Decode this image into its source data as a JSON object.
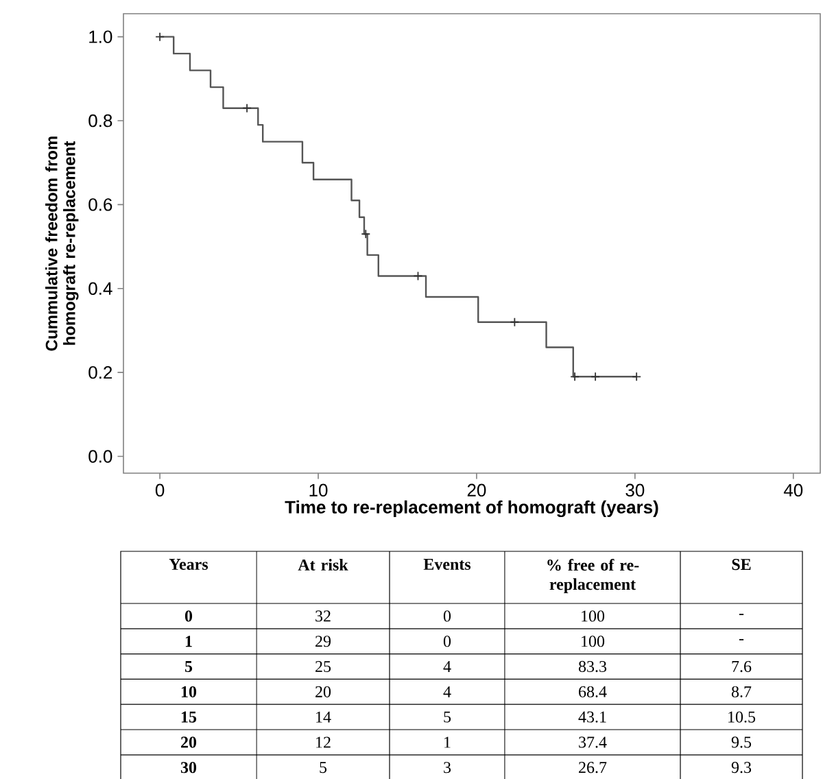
{
  "chart_data": {
    "type": "step",
    "xlabel": "Time to re-replacement of homograft (years)",
    "ylabel": "Cummulative freedom from homograft re-replacement",
    "xlim": [
      -2.3,
      41.7
    ],
    "ylim": [
      -0.04,
      1.055
    ],
    "xticks": [
      0,
      10,
      20,
      30,
      40
    ],
    "yticks": [
      {
        "value": 0,
        "label": "0.0"
      },
      {
        "value": 0.2,
        "label": "0.2"
      },
      {
        "value": 0.4,
        "label": "0.4"
      },
      {
        "value": 0.6,
        "label": "0.6"
      },
      {
        "value": 0.8,
        "label": "0.8"
      },
      {
        "value": 1,
        "label": "1.0"
      }
    ],
    "grid": false,
    "series": [
      {
        "color": "#555555",
        "x": [
          0,
          0.87,
          1.9,
          3.2,
          4.0,
          6.2,
          6.5,
          9.0,
          9.7,
          12.1,
          12.6,
          12.9,
          13.1,
          13.8,
          16.8,
          20.1,
          24.4,
          26.1,
          30.1
        ],
        "values": [
          1,
          0.96,
          0.92,
          0.88,
          0.83,
          0.79,
          0.75,
          0.7,
          0.66,
          0.61,
          0.57,
          0.53,
          0.48,
          0.43,
          0.38,
          0.32,
          0.26,
          0.19,
          0.19
        ]
      },
      {
        "type": "scatter",
        "marker": "cross",
        "color": "#333333",
        "x": [
          0,
          5.5,
          13.0,
          16.3,
          22.4,
          26.2,
          27.5,
          30.1
        ],
        "values": [
          1,
          0.83,
          0.53,
          0.43,
          0.32,
          0.19,
          0.19,
          0.19
        ]
      }
    ],
    "annotations": [
      "Years",
      "At risk",
      "Events",
      "% free of re-replacement",
      "SE",
      "0",
      "32",
      "0",
      "100",
      "-",
      "1",
      "29",
      "0",
      "100",
      "-",
      "5",
      "25",
      "4",
      "83.3",
      "7.6",
      "10",
      "20",
      "4",
      "68.4",
      "8.7",
      "15",
      "14",
      "5",
      "43.1",
      "10.5",
      "20",
      "12",
      "1",
      "37.4",
      "9.5",
      "30",
      "5",
      "3",
      "26.7",
      "9.3"
    ]
  }
}
